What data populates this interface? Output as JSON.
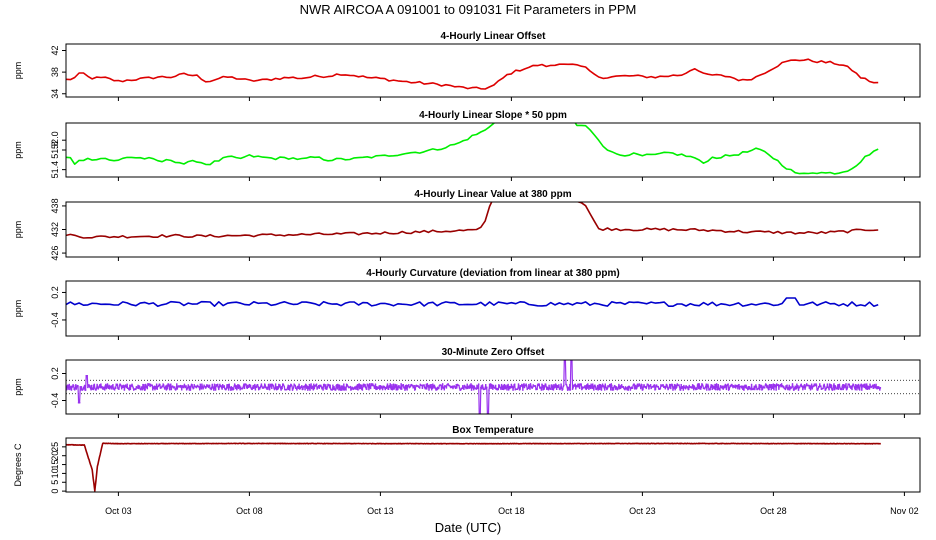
{
  "title": "NWR   AIRCOA A   091001 to 091031   Fit Parameters in PPM",
  "xlabel": "Date (UTC)",
  "x_ticks": [
    "Oct 03",
    "Oct 08",
    "Oct 13",
    "Oct 18",
    "Oct 23",
    "Oct 28",
    "Nov 02"
  ],
  "chart_data": [
    {
      "type": "line",
      "title": "4-Hourly Linear Offset",
      "ylabel": "ppm",
      "color": "#dd0000",
      "x_range": [
        "2009-10-01T00:00",
        "2009-11-02T10:00"
      ],
      "ylim": [
        33.4,
        43.2
      ],
      "yticks": [
        "34",
        "38",
        "42"
      ],
      "keypoints": [
        [
          1.0,
          36.6
        ],
        [
          1.3,
          36.8
        ],
        [
          1.6,
          38.0
        ],
        [
          1.9,
          36.9
        ],
        [
          2.5,
          36.9
        ],
        [
          3.0,
          36.3
        ],
        [
          3.5,
          36.6
        ],
        [
          4.0,
          36.8
        ],
        [
          4.5,
          37.1
        ],
        [
          5.0,
          37.1
        ],
        [
          5.5,
          37.6
        ],
        [
          6.0,
          37.3
        ],
        [
          6.4,
          36.2
        ],
        [
          6.8,
          36.8
        ],
        [
          7.2,
          37.1
        ],
        [
          7.6,
          36.8
        ],
        [
          8.0,
          36.4
        ],
        [
          8.5,
          36.5
        ],
        [
          9.0,
          36.8
        ],
        [
          9.5,
          37.0
        ],
        [
          10.0,
          36.9
        ],
        [
          10.5,
          37.2
        ],
        [
          11.0,
          37.3
        ],
        [
          11.5,
          37.7
        ],
        [
          12.0,
          37.4
        ],
        [
          12.5,
          37.0
        ],
        [
          13.0,
          36.8
        ],
        [
          13.5,
          36.5
        ],
        [
          14.0,
          36.2
        ],
        [
          14.5,
          36.0
        ],
        [
          15.0,
          35.8
        ],
        [
          15.5,
          35.6
        ],
        [
          16.0,
          35.2
        ],
        [
          16.5,
          35.0
        ],
        [
          16.9,
          34.9
        ],
        [
          17.3,
          35.4
        ],
        [
          17.6,
          36.6
        ],
        [
          17.9,
          37.7
        ],
        [
          18.5,
          38.7
        ],
        [
          19.0,
          39.3
        ],
        [
          19.5,
          39.1
        ],
        [
          20.0,
          39.7
        ],
        [
          20.5,
          39.2
        ],
        [
          20.9,
          38.6
        ],
        [
          21.2,
          37.3
        ],
        [
          21.6,
          37.0
        ],
        [
          22.0,
          37.2
        ],
        [
          22.5,
          37.3
        ],
        [
          23.0,
          37.2
        ],
        [
          23.5,
          37.1
        ],
        [
          24.0,
          37.3
        ],
        [
          24.5,
          37.5
        ],
        [
          25.0,
          38.8
        ],
        [
          25.3,
          37.6
        ],
        [
          25.8,
          37.4
        ],
        [
          26.3,
          37.2
        ],
        [
          26.8,
          36.4
        ],
        [
          27.3,
          37.0
        ],
        [
          27.8,
          38.3
        ],
        [
          28.3,
          39.6
        ],
        [
          28.8,
          40.3
        ],
        [
          29.3,
          40.2
        ],
        [
          29.8,
          39.9
        ],
        [
          30.3,
          39.7
        ],
        [
          30.7,
          39.2
        ],
        [
          31.0,
          38.4
        ],
        [
          31.3,
          37.1
        ],
        [
          31.6,
          36.5
        ],
        [
          31.9,
          35.9
        ],
        [
          32.1,
          36.0
        ]
      ]
    },
    {
      "type": "line",
      "title": "4-Hourly Linear Slope * 50 ppm",
      "ylabel": "ppm",
      "color": "#00ee00",
      "x_range": [
        "2009-10-01T00:00",
        "2009-11-02T10:00"
      ],
      "ylim": [
        51.25,
        52.35
      ],
      "yticks": [
        "51.4",
        "51.8",
        "52.0"
      ],
      "keypoints": [
        [
          1.0,
          51.65
        ],
        [
          1.2,
          51.63
        ],
        [
          1.3,
          51.48
        ],
        [
          1.5,
          51.6
        ],
        [
          2.0,
          51.62
        ],
        [
          2.5,
          51.63
        ],
        [
          2.9,
          51.56
        ],
        [
          3.3,
          51.66
        ],
        [
          3.8,
          51.64
        ],
        [
          4.2,
          51.62
        ],
        [
          4.6,
          51.56
        ],
        [
          5.0,
          51.6
        ],
        [
          5.5,
          51.52
        ],
        [
          6.0,
          51.58
        ],
        [
          6.4,
          51.5
        ],
        [
          6.8,
          51.58
        ],
        [
          7.2,
          51.66
        ],
        [
          7.6,
          51.62
        ],
        [
          8.0,
          51.68
        ],
        [
          8.5,
          51.65
        ],
        [
          9.0,
          51.63
        ],
        [
          9.5,
          51.64
        ],
        [
          10.0,
          51.61
        ],
        [
          10.5,
          51.65
        ],
        [
          11.0,
          51.6
        ],
        [
          11.5,
          51.61
        ],
        [
          12.0,
          51.62
        ],
        [
          12.5,
          51.65
        ],
        [
          13.0,
          51.67
        ],
        [
          13.5,
          51.7
        ],
        [
          14.0,
          51.74
        ],
        [
          14.5,
          51.76
        ],
        [
          15.0,
          51.8
        ],
        [
          15.5,
          51.86
        ],
        [
          16.0,
          51.94
        ],
        [
          16.5,
          52.08
        ],
        [
          17.0,
          52.2
        ],
        [
          17.3,
          52.35
        ],
        [
          17.5,
          52.45
        ],
        [
          19.0,
          52.45
        ],
        [
          20.3,
          52.45
        ],
        [
          20.5,
          52.3
        ],
        [
          20.8,
          52.3
        ],
        [
          21.2,
          52.1
        ],
        [
          21.5,
          51.9
        ],
        [
          21.8,
          51.75
        ],
        [
          22.2,
          51.7
        ],
        [
          22.6,
          51.72
        ],
        [
          23.0,
          51.68
        ],
        [
          23.5,
          51.7
        ],
        [
          24.0,
          51.74
        ],
        [
          24.5,
          51.7
        ],
        [
          25.0,
          51.64
        ],
        [
          25.3,
          51.52
        ],
        [
          25.6,
          51.64
        ],
        [
          26.0,
          51.66
        ],
        [
          26.5,
          51.7
        ],
        [
          27.0,
          51.76
        ],
        [
          27.4,
          51.82
        ],
        [
          27.8,
          51.72
        ],
        [
          28.2,
          51.56
        ],
        [
          28.6,
          51.4
        ],
        [
          29.0,
          51.3
        ],
        [
          29.5,
          51.35
        ],
        [
          30.0,
          51.33
        ],
        [
          30.5,
          51.34
        ],
        [
          30.9,
          51.4
        ],
        [
          31.3,
          51.55
        ],
        [
          31.6,
          51.7
        ],
        [
          31.9,
          51.8
        ],
        [
          32.1,
          51.79
        ]
      ]
    },
    {
      "type": "line",
      "title": "4-Hourly Linear Value at 380 ppm",
      "ylabel": "ppm",
      "color": "#990000",
      "x_range": [
        "2009-10-01T00:00",
        "2009-11-02T10:00"
      ],
      "ylim": [
        425.0,
        439.0
      ],
      "yticks": [
        "426",
        "432",
        "438"
      ],
      "keypoints": [
        [
          1.0,
          430.8
        ],
        [
          1.5,
          430.2
        ],
        [
          2.0,
          430.1
        ],
        [
          3.0,
          430.2
        ],
        [
          4.0,
          430.3
        ],
        [
          5.0,
          430.4
        ],
        [
          6.0,
          430.3
        ],
        [
          7.0,
          430.4
        ],
        [
          8.0,
          430.5
        ],
        [
          9.0,
          430.6
        ],
        [
          10.0,
          430.7
        ],
        [
          11.0,
          430.8
        ],
        [
          12.0,
          430.9
        ],
        [
          13.0,
          431.1
        ],
        [
          14.0,
          431.3
        ],
        [
          15.0,
          431.5
        ],
        [
          16.0,
          431.7
        ],
        [
          16.8,
          431.9
        ],
        [
          17.0,
          434.0
        ],
        [
          17.25,
          440.0
        ],
        [
          19.0,
          440.5
        ],
        [
          20.3,
          440.0
        ],
        [
          20.8,
          438.5
        ],
        [
          21.0,
          436.0
        ],
        [
          21.3,
          432.2
        ],
        [
          22.0,
          432.1
        ],
        [
          23.0,
          432.0
        ],
        [
          24.0,
          432.0
        ],
        [
          25.0,
          431.9
        ],
        [
          26.0,
          431.7
        ],
        [
          27.0,
          431.4
        ],
        [
          28.0,
          431.3
        ],
        [
          29.0,
          431.1
        ],
        [
          30.0,
          431.2
        ],
        [
          31.0,
          431.6
        ],
        [
          31.6,
          432.0
        ],
        [
          32.1,
          432.1
        ]
      ]
    },
    {
      "type": "line",
      "title": "4-Hourly Curvature (deviation from linear at 380 ppm)",
      "ylabel": "ppm",
      "color": "#0000cc",
      "x_range": [
        "2009-10-01T00:00",
        "2009-11-02T10:00"
      ],
      "ylim": [
        -0.75,
        0.45
      ],
      "yticks": [
        "-0.4",
        "0.2"
      ],
      "baseline": -0.05,
      "noise": 0.05,
      "spikes": [
        [
          28.7,
          0.08
        ]
      ]
    },
    {
      "type": "scatter",
      "title": "30-Minute Zero Offset",
      "ylabel": "ppm",
      "color": "#9933ee",
      "x_range": [
        "2009-10-01T00:00",
        "2009-11-02T10:00"
      ],
      "ylim": [
        -0.7,
        0.5
      ],
      "yticks": [
        "-0.4",
        "0.2"
      ],
      "hlines": [
        0.05,
        -0.25
      ],
      "baseline": -0.1,
      "noise": 0.07,
      "spikes": [
        [
          1.5,
          -0.45
        ],
        [
          1.8,
          0.15
        ],
        [
          16.8,
          -0.7
        ],
        [
          17.1,
          -0.7
        ],
        [
          20.05,
          0.5
        ],
        [
          20.3,
          0.5
        ]
      ]
    },
    {
      "type": "line",
      "title": "Box Temperature",
      "ylabel": "Degrees C",
      "color": "#990000",
      "x_range": [
        "2009-10-01T00:00",
        "2009-11-02T10:00"
      ],
      "ylim": [
        -0.5,
        30.0
      ],
      "yticks": [
        "0",
        "5",
        "10",
        "15",
        "20",
        "25"
      ],
      "keypoints": [
        [
          1.0,
          26.2
        ],
        [
          1.7,
          26.0
        ],
        [
          2.0,
          12.0
        ],
        [
          2.1,
          0.0
        ],
        [
          2.2,
          14.0
        ],
        [
          2.4,
          27.0
        ],
        [
          3.0,
          26.8
        ],
        [
          8.0,
          26.9
        ],
        [
          16.0,
          26.8
        ],
        [
          24.0,
          26.9
        ],
        [
          32.1,
          26.8
        ]
      ]
    }
  ]
}
